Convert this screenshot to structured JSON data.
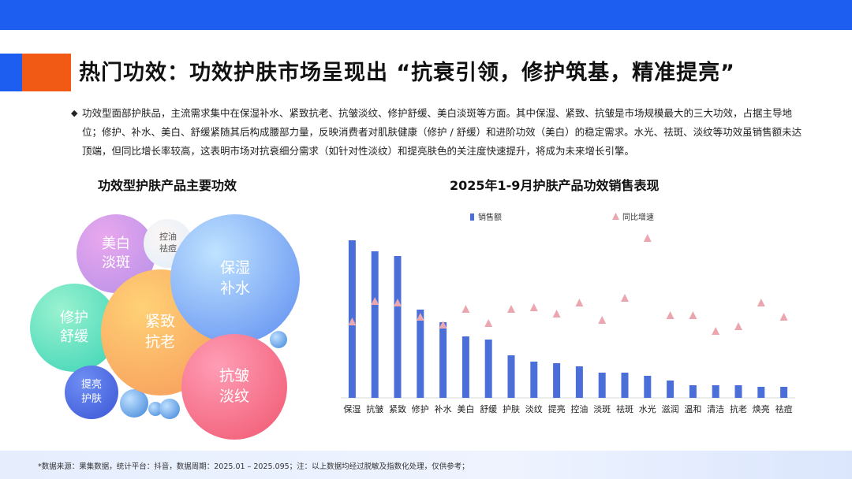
{
  "header": {
    "title": "热门功效：功效护肤市场呈现出 “抗衰引领，修护筑基，精准提亮”"
  },
  "summary": {
    "bullet": "◆",
    "text": "功效型面部护肤品，主流需求集中在保湿补水、紧致抗老、抗皱淡纹、修护舒缓、美白淡斑等方面。其中保湿、紧致、抗皱是市场规模最大的三大功效，占据主导地位；修护、补水、美白、舒缓紧随其后构成腰部力量，反映消费者对肌肤健康（修护 / 舒缓）和进阶功效（美白）的稳定需求。水光、祛斑、淡纹等功效虽销售额未达顶端，但同比增长率较高，这表明市场对抗衰细分需求（如针对性淡纹）和提亮肤色的关注度快速提升，将成为未来增长引擎。"
  },
  "bubble_section": {
    "title": "功效型护肤产品主要功效",
    "bubbles": [
      {
        "label": "美白\n淡斑",
        "color_from": "#e9a8ee",
        "color_to": "#b58fe8"
      },
      {
        "label": "控油\n祛痘",
        "color_from": "#fdf6f4",
        "color_to": "#dfeefb"
      },
      {
        "label": "修护\n舒缓",
        "color_from": "#9af2d0",
        "color_to": "#38d3b4"
      },
      {
        "label": "紧致\n抗老",
        "color_from": "#ffd176",
        "color_to": "#f79a5a"
      },
      {
        "label": "保湿\n补水",
        "color_from": "#bfe3ff",
        "color_to": "#5c8bf0"
      },
      {
        "label": "抗皱\n淡纹",
        "color_from": "#ff9db6",
        "color_to": "#f0566f"
      },
      {
        "label": "提亮\n护肤",
        "color_from": "#6f8ff3",
        "color_to": "#3a55d6"
      }
    ]
  },
  "chart_section": {
    "title": "2025年1-9月护肤产品功效销售表现"
  },
  "chart_data": {
    "type": "bar",
    "title": "2025年1-9月护肤产品功效销售表现",
    "categories": [
      "保湿",
      "抗皱",
      "紧致",
      "修护",
      "补水",
      "美白",
      "舒缓",
      "护肤",
      "淡纹",
      "提亮",
      "控油",
      "淡斑",
      "祛斑",
      "水光",
      "滋润",
      "温和",
      "清洁",
      "抗老",
      "焕亮",
      "祛痘"
    ],
    "series": [
      {
        "name": "销售额",
        "kind": "bar",
        "color": "#4a6fd8",
        "values": [
          100,
          93,
          90,
          56,
          48,
          39,
          37,
          27,
          23,
          22,
          20,
          16,
          16,
          14,
          11,
          8,
          8,
          8,
          7,
          7
        ]
      },
      {
        "name": "同比增速",
        "kind": "marker",
        "marker": "triangle",
        "color": "#eca6b0",
        "values": [
          48,
          61,
          60,
          51,
          46,
          56,
          47,
          56,
          57,
          53,
          60,
          49,
          63,
          101,
          52,
          52,
          42,
          45,
          60,
          51
        ]
      }
    ],
    "ylim": [
      0,
      110
    ],
    "grid": false,
    "legend_position": "top"
  },
  "footer": {
    "note": "*数据来源：果集数据，统计平台：抖音，数据周期：2025.01 – 2025.095；注：以上数据均经过脱敏及指数化处理，仅供参考；"
  }
}
